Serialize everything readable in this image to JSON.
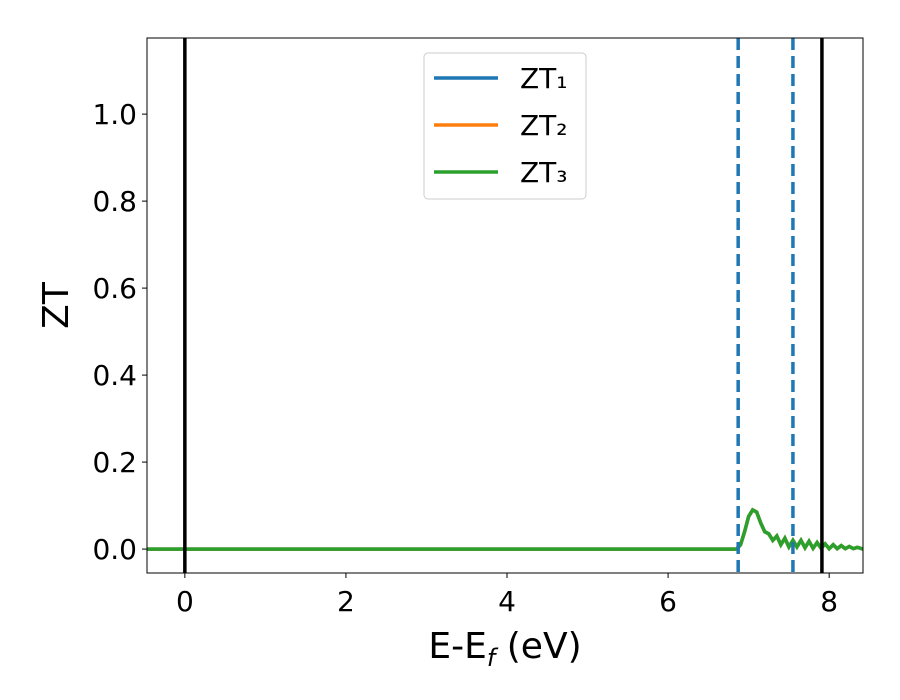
{
  "chart_data": {
    "type": "line",
    "xlabel": "E-E_f (eV)",
    "ylabel": "ZT",
    "xlim": [
      -0.47,
      8.42
    ],
    "ylim": [
      -0.055,
      1.175
    ],
    "xticks": [
      0,
      2,
      4,
      6,
      8
    ],
    "yticks": [
      {
        "value": 0,
        "label": "0.0"
      },
      {
        "value": 0.2,
        "label": "0.2"
      },
      {
        "value": 0.4,
        "label": "0.4"
      },
      {
        "value": 0.6,
        "label": "0.6"
      },
      {
        "value": 0.8,
        "label": "0.8"
      },
      {
        "value": 1,
        "label": "1.0"
      }
    ],
    "x": [
      -0.47,
      6.85,
      6.9,
      6.95,
      7.0,
      7.05,
      7.1,
      7.15,
      7.2,
      7.25,
      7.3,
      7.35,
      7.4,
      7.45,
      7.5,
      7.55,
      7.6,
      7.65,
      7.7,
      7.75,
      7.8,
      7.85,
      7.9,
      7.95,
      8.0,
      8.05,
      8.1,
      8.15,
      8.2,
      8.25,
      8.3,
      8.35,
      8.42
    ],
    "series": [
      {
        "name": "ZT₁",
        "color": "#1f77b4",
        "values": [
          0,
          0,
          0.01,
          0.04,
          0.075,
          0.09,
          0.085,
          0.06,
          0.04,
          0.035,
          0.02,
          0.03,
          0.01,
          0.025,
          0.005,
          0.02,
          0.005,
          0.02,
          0.003,
          0.018,
          0.002,
          0.015,
          0.002,
          0.012,
          0.001,
          0.01,
          0.001,
          0.008,
          0.001,
          0.006,
          0.001,
          0.004,
          0
        ]
      },
      {
        "name": "ZT₂",
        "color": "#ff7f0e",
        "values": [
          0,
          0,
          0.01,
          0.04,
          0.075,
          0.09,
          0.085,
          0.06,
          0.04,
          0.035,
          0.02,
          0.03,
          0.01,
          0.025,
          0.005,
          0.02,
          0.005,
          0.02,
          0.003,
          0.018,
          0.002,
          0.015,
          0.002,
          0.012,
          0.001,
          0.01,
          0.001,
          0.008,
          0.001,
          0.006,
          0.001,
          0.004,
          0
        ]
      },
      {
        "name": "ZT₃",
        "color": "#2ca02c",
        "values": [
          0,
          0,
          0.01,
          0.04,
          0.075,
          0.09,
          0.085,
          0.06,
          0.04,
          0.035,
          0.02,
          0.03,
          0.01,
          0.025,
          0.005,
          0.02,
          0.005,
          0.02,
          0.003,
          0.018,
          0.002,
          0.015,
          0.002,
          0.012,
          0.001,
          0.01,
          0.001,
          0.008,
          0.001,
          0.006,
          0.001,
          0.004,
          0
        ]
      }
    ],
    "vlines": [
      {
        "x": 0,
        "color": "#000000",
        "style": "solid"
      },
      {
        "x": 7.91,
        "color": "#000000",
        "style": "solid"
      },
      {
        "x": 6.87,
        "color": "#1f77b4",
        "style": "dashed"
      },
      {
        "x": 7.55,
        "color": "#1f77b4",
        "style": "dashed"
      }
    ],
    "legend": "upper center"
  }
}
